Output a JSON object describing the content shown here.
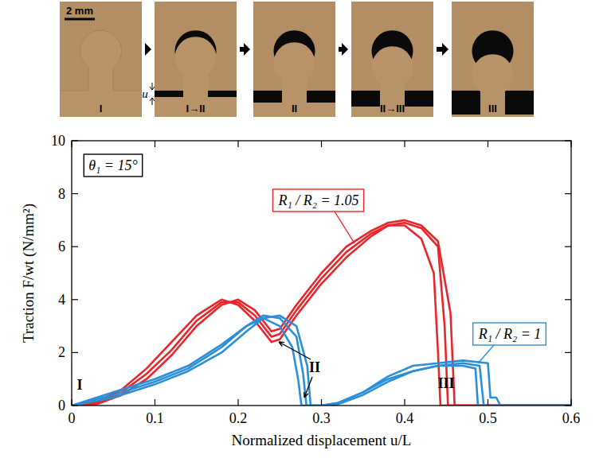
{
  "photos": {
    "scale_bar": "2 mm",
    "displacement_label": "u",
    "stages": [
      "I",
      "I→II",
      "II",
      "II→III",
      "III"
    ]
  },
  "chart_data": {
    "type": "line",
    "x_label": "Normalized displacement u/L",
    "y_label": "Traction F/wt (N/mm²)",
    "xlim": [
      0,
      0.6
    ],
    "ylim": [
      0,
      10
    ],
    "xticks": [
      0,
      0.1,
      0.2,
      0.3,
      0.4,
      0.5,
      0.6
    ],
    "yticks": [
      0,
      2,
      4,
      6,
      8,
      10
    ],
    "annotations": [
      "θ₁ = 15°"
    ],
    "stage_labels": [
      "I",
      "II",
      "III"
    ],
    "labels": [
      {
        "text": "R₁ / R₂ = 1.05",
        "color": "#e8262b"
      },
      {
        "text": "R₁ / R₂ = 1",
        "color": "#2b8fd8"
      }
    ],
    "series": [
      {
        "color": "#e8262b",
        "x": [
          0,
          0.03,
          0.06,
          0.09,
          0.12,
          0.15,
          0.18,
          0.2,
          0.22,
          0.24,
          0.25,
          0.27,
          0.3,
          0.33,
          0.36,
          0.38,
          0.4,
          0.42,
          0.435,
          0.44,
          0.443,
          0.6
        ],
        "values": [
          0,
          0.1,
          0.5,
          1.2,
          2.1,
          3.2,
          3.9,
          3.9,
          3.4,
          2.6,
          2.7,
          3.6,
          4.8,
          5.8,
          6.5,
          6.8,
          6.8,
          6.3,
          5.0,
          2.0,
          0,
          0
        ]
      },
      {
        "color": "#e8262b",
        "x": [
          0,
          0.03,
          0.06,
          0.09,
          0.12,
          0.15,
          0.18,
          0.2,
          0.22,
          0.24,
          0.25,
          0.27,
          0.3,
          0.33,
          0.36,
          0.38,
          0.4,
          0.42,
          0.44,
          0.448,
          0.452,
          0.6
        ],
        "values": [
          0,
          0.15,
          0.6,
          1.4,
          2.4,
          3.4,
          4.0,
          3.8,
          3.2,
          2.4,
          2.5,
          3.4,
          4.6,
          5.6,
          6.4,
          6.8,
          6.9,
          6.7,
          6.0,
          3.0,
          0,
          0
        ]
      },
      {
        "color": "#e8262b",
        "x": [
          0,
          0.03,
          0.06,
          0.09,
          0.12,
          0.15,
          0.18,
          0.2,
          0.22,
          0.24,
          0.25,
          0.27,
          0.3,
          0.33,
          0.36,
          0.38,
          0.4,
          0.42,
          0.44,
          0.455,
          0.46,
          0.6
        ],
        "values": [
          0,
          0.05,
          0.4,
          1.0,
          1.9,
          3.0,
          3.8,
          4.0,
          3.6,
          2.8,
          2.9,
          3.8,
          5.0,
          6.0,
          6.6,
          6.9,
          7.0,
          6.8,
          6.2,
          3.5,
          0,
          0
        ]
      },
      {
        "color": "#2b8fd8",
        "x": [
          0,
          0.05,
          0.1,
          0.14,
          0.18,
          0.21,
          0.23,
          0.25,
          0.265,
          0.272,
          0.276,
          0.3,
          0.32,
          0.35,
          0.38,
          0.41,
          0.44,
          0.47,
          0.485,
          0.488,
          0.6
        ],
        "values": [
          0,
          0.5,
          1.0,
          1.5,
          2.3,
          3.0,
          3.3,
          3.0,
          2.2,
          1.0,
          0,
          0,
          0.1,
          0.5,
          1.0,
          1.3,
          1.5,
          1.5,
          1.4,
          0,
          0
        ]
      },
      {
        "color": "#2b8fd8",
        "x": [
          0,
          0.05,
          0.1,
          0.14,
          0.18,
          0.21,
          0.23,
          0.25,
          0.27,
          0.278,
          0.282,
          0.3,
          0.32,
          0.35,
          0.38,
          0.41,
          0.44,
          0.47,
          0.49,
          0.495,
          0.6
        ],
        "values": [
          0,
          0.4,
          0.9,
          1.4,
          2.2,
          3.0,
          3.4,
          3.3,
          2.6,
          1.2,
          0,
          0,
          0.05,
          0.4,
          0.9,
          1.3,
          1.5,
          1.6,
          1.5,
          0,
          0
        ]
      },
      {
        "color": "#2b8fd8",
        "x": [
          0,
          0.05,
          0.1,
          0.14,
          0.18,
          0.21,
          0.23,
          0.25,
          0.27,
          0.283,
          0.287,
          0.3,
          0.32,
          0.35,
          0.38,
          0.41,
          0.44,
          0.47,
          0.5,
          0.503,
          0.51,
          0.515,
          0.6
        ],
        "values": [
          0,
          0.3,
          0.8,
          1.3,
          2.0,
          2.8,
          3.3,
          3.4,
          3.0,
          1.5,
          0,
          0,
          0.1,
          0.5,
          1.1,
          1.5,
          1.6,
          1.7,
          1.6,
          0.3,
          0.3,
          0,
          0
        ]
      }
    ]
  }
}
